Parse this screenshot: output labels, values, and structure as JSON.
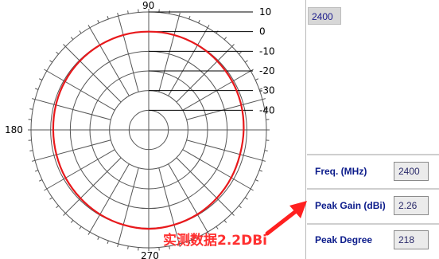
{
  "chart_data": {
    "type": "polar",
    "angle_labels": [
      "90",
      "180",
      "270"
    ],
    "radial_tick_labels": [
      "10",
      "0",
      "-10",
      "-20",
      "-30",
      "-40"
    ],
    "radial_ticks": [
      10,
      0,
      -10,
      -20,
      -30,
      -40
    ],
    "rlim": [
      -50,
      10
    ],
    "grid": true,
    "series": [
      {
        "color": "#e8191c",
        "unit_note": "",
        "angles": [
          0,
          15,
          30,
          45,
          60,
          75,
          90,
          105,
          120,
          135,
          150,
          165,
          180,
          195,
          210,
          225,
          240,
          255,
          270,
          285,
          300,
          315,
          330,
          345
        ],
        "gain": [
          -1.6,
          -1.2,
          -0.8,
          -0.5,
          -0.2,
          0.0,
          0.0,
          0.0,
          -0.2,
          -0.4,
          -0.7,
          -1.0,
          -1.3,
          -1.3,
          -1.1,
          -0.8,
          -0.4,
          0.0,
          0.3,
          0.0,
          -0.4,
          -0.9,
          -1.4,
          -1.8
        ]
      }
    ]
  },
  "panel": {
    "freq_display": "2400",
    "rows": [
      {
        "label": "Freq. (MHz)",
        "value": "2400"
      },
      {
        "label": "Peak Gain (dBi)",
        "value": "2.26"
      },
      {
        "label": "Peak Degree",
        "value": "218"
      }
    ]
  },
  "annotation": {
    "text": "实测数据2.2DBi",
    "color": "#ff3030"
  }
}
